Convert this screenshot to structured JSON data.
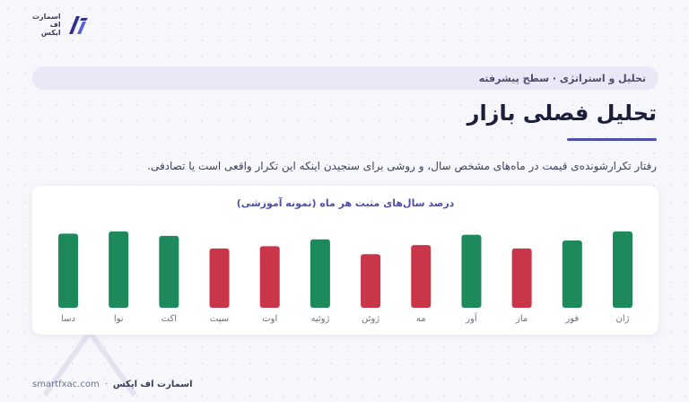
{
  "brand": {
    "logo_lines": [
      "اسمارت",
      "اف",
      "ایکس"
    ],
    "footer_name": "اسمارت اف ایکس",
    "footer_sep": "·",
    "footer_url": "smartfxac.com"
  },
  "header": {
    "breadcrumb": "تحلیل و استراتژی · سطح پیشرفته",
    "title": "تحلیل فصلی بازار",
    "subtitle": "رفتار تکرارشونده‌ی قیمت در ماه‌های مشخص سال، و روشی برای سنجیدن اینکه این تکرار واقعی است یا تصادفی."
  },
  "colors": {
    "positive": "#1e8a5c",
    "negative": "#c9364a",
    "accent": "#4d4fae"
  },
  "chart_data": {
    "type": "bar",
    "title": "درصد سال‌های مثبت هر ماه (نمونه آموزشی)",
    "categories": [
      "ژان",
      "فور",
      "مار",
      "آور",
      "مه",
      "ژوئن",
      "ژوئیه",
      "اوت",
      "سپت",
      "اکت",
      "نوا",
      "دسا"
    ],
    "values": [
      67,
      59,
      52,
      64,
      55,
      47,
      60,
      54,
      52,
      63,
      67,
      65
    ],
    "status": [
      "positive",
      "positive",
      "negative",
      "positive",
      "negative",
      "negative",
      "positive",
      "negative",
      "negative",
      "positive",
      "positive",
      "positive"
    ],
    "ylim": [
      0,
      100
    ],
    "direction": "rtl"
  }
}
